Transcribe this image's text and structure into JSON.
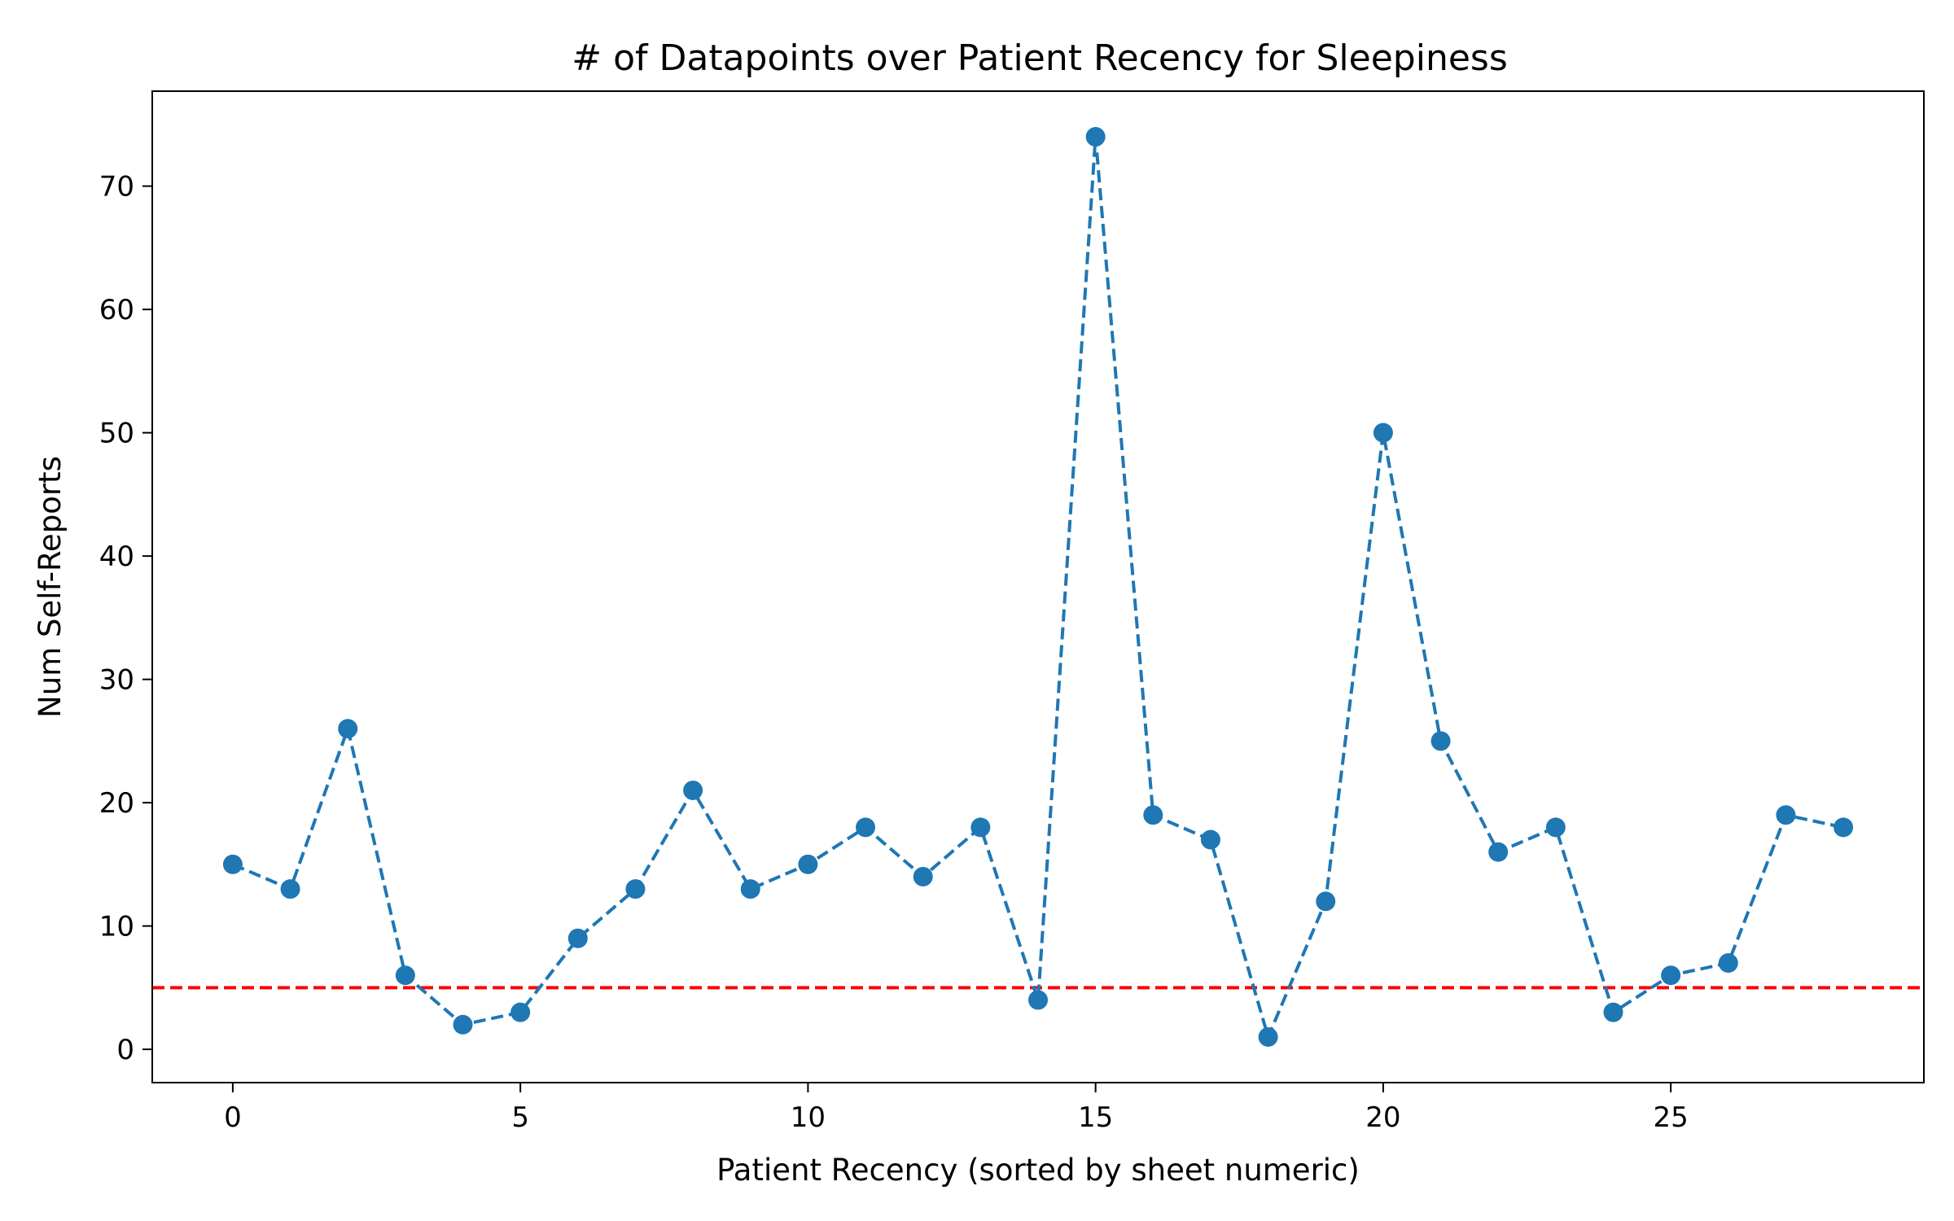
{
  "chart_data": {
    "type": "line",
    "title": "# of Datapoints over Patient Recency for Sleepiness",
    "xlabel": "Patient Recency (sorted by sheet numeric)",
    "ylabel": "Num Self-Reports",
    "x": [
      0,
      1,
      2,
      3,
      4,
      5,
      6,
      7,
      8,
      9,
      10,
      11,
      12,
      13,
      14,
      15,
      16,
      17,
      18,
      19,
      20,
      21,
      22,
      23,
      24,
      25,
      26,
      27,
      28
    ],
    "series": [
      {
        "values": [
          15,
          13,
          26,
          6,
          2,
          3,
          9,
          13,
          21,
          13,
          15,
          18,
          14,
          18,
          4,
          74,
          19,
          17,
          1,
          12,
          50,
          25,
          16,
          18,
          3,
          6,
          7,
          19,
          18
        ],
        "color": "#1f77b4",
        "line_style": "dashed",
        "marker": "circle"
      }
    ],
    "threshold": {
      "y": 5,
      "color": "#ff0000",
      "line_style": "dashed"
    },
    "xlim": [
      -1.4,
      29.4
    ],
    "ylim": [
      -2.7,
      77.7
    ],
    "xticks": [
      0,
      5,
      10,
      15,
      20,
      25
    ],
    "yticks": [
      0,
      10,
      20,
      30,
      40,
      50,
      60,
      70
    ],
    "grid": false,
    "legend": false
  }
}
